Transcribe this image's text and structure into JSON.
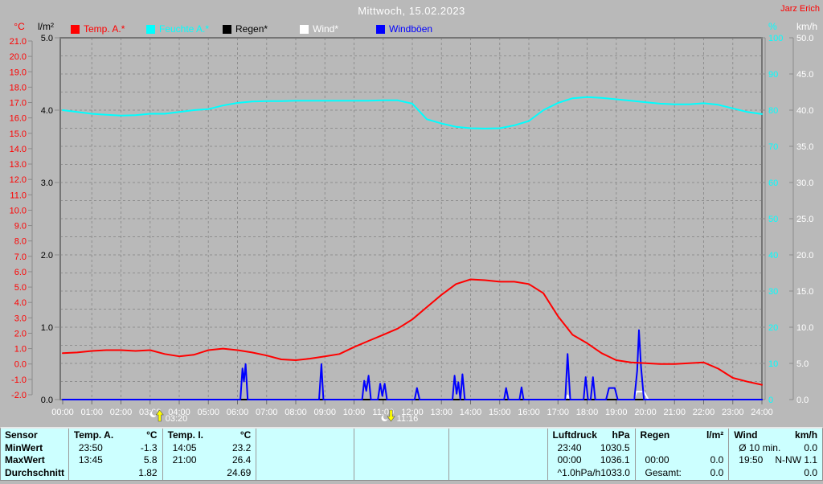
{
  "header": {
    "title": "Mittwoch, 15.02.2023",
    "author": "Jarz Erich"
  },
  "legend": {
    "items": [
      {
        "label": "Temp. A.*",
        "color": "#ff0000"
      },
      {
        "label": "Feuchte A.*",
        "color": "#00ffff"
      },
      {
        "label": "Regen*",
        "color": "#000000"
      },
      {
        "label": "Wind*",
        "color": "#ffffff"
      },
      {
        "label": "Windböen",
        "color": "#0000ff"
      }
    ]
  },
  "chart_data": {
    "type": "line",
    "title": "Mittwoch, 15.02.2023",
    "x_label": "Uhrzeit",
    "x_range_hours": [
      0,
      24
    ],
    "grid": true,
    "x_tick_labels": [
      "00:00",
      "01:00",
      "02:00",
      "03:00",
      "04:00",
      "05:00",
      "06:00",
      "07:00",
      "08:00",
      "09:00",
      "10:00",
      "11:00",
      "12:00",
      "13:00",
      "14:00",
      "15:00",
      "16:00",
      "17:00",
      "18:00",
      "19:00",
      "20:00",
      "21:00",
      "22:00",
      "23:00",
      "24:00"
    ],
    "axes": {
      "temp": {
        "unit": "°C",
        "color": "#ff0000",
        "range": [
          -2,
          21
        ],
        "ticks": [
          "21.0",
          "20.0",
          "19.0",
          "18.0",
          "17.0",
          "16.0",
          "15.0",
          "14.0",
          "13.0",
          "12.0",
          "11.0",
          "10.0",
          "9.0",
          "8.0",
          "7.0",
          "6.0",
          "5.0",
          "4.0",
          "3.0",
          "2.0",
          "1.0",
          "0.0",
          "-1.0",
          "-2.0"
        ]
      },
      "rain": {
        "unit": "l/m²",
        "color": "#000000",
        "range": [
          0,
          5
        ],
        "ticks": [
          "5.0",
          "4.0",
          "3.0",
          "2.0",
          "1.0",
          "0.0"
        ]
      },
      "humidity": {
        "unit": "%",
        "color": "#00ffff",
        "range": [
          0,
          100
        ],
        "ticks": [
          "100",
          "90",
          "80",
          "70",
          "60",
          "50",
          "40",
          "30",
          "20",
          "10",
          "0"
        ]
      },
      "wind": {
        "unit": "km/h",
        "color": "#ffffff",
        "range": [
          0,
          50
        ],
        "ticks": [
          "50.0",
          "45.0",
          "40.0",
          "35.0",
          "30.0",
          "25.0",
          "20.0",
          "15.0",
          "10.0",
          "5.0",
          "0.0"
        ]
      }
    },
    "series": [
      {
        "name": "Feuchte A.*",
        "axis": "humidity",
        "color": "#00ffff",
        "x_start": 0,
        "x_step": 0.5,
        "values": [
          80,
          79.5,
          79,
          78.7,
          78.5,
          78.6,
          79,
          79,
          79.5,
          80,
          80.3,
          81.3,
          82,
          82.4,
          82.5,
          82.5,
          82.6,
          82.6,
          82.6,
          82.6,
          82.6,
          82.6,
          82.7,
          82.7,
          81.8,
          77.5,
          76.3,
          75.4,
          75,
          74.9,
          75,
          75.8,
          77,
          80,
          82,
          83.3,
          83.6,
          83.4,
          83,
          82.6,
          82.2,
          81.8,
          81.6,
          81.6,
          81.9,
          81.5,
          80.5,
          79.5,
          78.9
        ]
      },
      {
        "name": "Wind*",
        "axis": "wind",
        "color": "#ffffff",
        "x": [
          0,
          17.28,
          17.33,
          17.4,
          19.6,
          19.7,
          19.95,
          20.1,
          24
        ],
        "values": [
          0,
          0,
          0.6,
          0,
          0,
          1.1,
          1.1,
          0,
          0
        ]
      },
      {
        "name": "Regen*",
        "axis": "rain",
        "color": "#000000",
        "x": [
          0,
          24
        ],
        "values": [
          0,
          0
        ]
      },
      {
        "name": "Windböen",
        "axis": "wind",
        "color": "#0000ff",
        "x": [
          0,
          6.1,
          6.17,
          6.22,
          6.28,
          6.35,
          8.8,
          8.88,
          8.95,
          10.28,
          10.35,
          10.42,
          10.5,
          10.58,
          10.82,
          10.9,
          10.97,
          11.05,
          11.13,
          12.08,
          12.16,
          12.25,
          13.38,
          13.45,
          13.52,
          13.58,
          13.65,
          13.72,
          13.8,
          15.15,
          15.22,
          15.3,
          15.68,
          15.75,
          15.82,
          17.25,
          17.33,
          17.42,
          17.88,
          17.95,
          18.03,
          18.12,
          18.2,
          18.28,
          18.65,
          18.75,
          18.95,
          19.05,
          19.62,
          19.72,
          19.78,
          19.85,
          19.95,
          24
        ],
        "values": [
          0,
          0,
          4.3,
          2.5,
          4.9,
          0,
          0,
          4.9,
          0,
          0,
          2.6,
          1.2,
          3.3,
          0,
          0,
          2.2,
          0.5,
          2.2,
          0,
          0,
          1.6,
          0,
          0,
          3.3,
          0.8,
          2.4,
          0,
          3.5,
          0,
          0,
          1.6,
          0,
          0,
          1.7,
          0,
          0,
          6.3,
          0,
          0,
          3.1,
          0,
          0,
          3.1,
          0,
          0,
          1.6,
          1.6,
          0,
          0,
          4.0,
          9.6,
          4.5,
          0,
          0
        ]
      },
      {
        "name": "Temp. A.*",
        "axis": "temp",
        "color": "#ff0000",
        "x_start": 0,
        "x_step": 0.5,
        "values": [
          0.7,
          0.75,
          0.85,
          0.9,
          0.9,
          0.85,
          0.9,
          0.65,
          0.5,
          0.6,
          0.9,
          1.0,
          0.9,
          0.75,
          0.55,
          0.3,
          0.25,
          0.35,
          0.5,
          0.65,
          1.1,
          1.5,
          1.9,
          2.3,
          2.9,
          3.7,
          4.5,
          5.2,
          5.5,
          5.45,
          5.35,
          5.35,
          5.2,
          4.6,
          3.1,
          1.9,
          1.35,
          0.7,
          0.25,
          0.1,
          0.05,
          0.0,
          0.0,
          0.05,
          0.1,
          -0.3,
          -0.9,
          -1.15,
          -1.35
        ]
      }
    ],
    "markers": [
      {
        "label": "03:20",
        "hours": 3.33,
        "type": "moonrise"
      },
      {
        "label": "11:16",
        "hours": 11.27,
        "type": "moonset"
      }
    ]
  },
  "table": {
    "row_labels": [
      "Sensor",
      "MinWert",
      "MaxWert",
      "Durchschnitt"
    ],
    "columns": [
      {
        "name": "Temp. A.",
        "unit": "°C",
        "rows": [
          [
            "23:50",
            "-1.3"
          ],
          [
            "13:45",
            "5.8"
          ],
          [
            "",
            "1.82"
          ]
        ]
      },
      {
        "name": "Temp. I.",
        "unit": "°C",
        "rows": [
          [
            "14:05",
            "23.2"
          ],
          [
            "21:00",
            "26.4"
          ],
          [
            "",
            "24.69"
          ]
        ]
      },
      {
        "name": "",
        "unit": "",
        "rows": [
          [
            "",
            ""
          ],
          [
            "",
            ""
          ],
          [
            "",
            ""
          ]
        ]
      },
      {
        "name": "",
        "unit": "",
        "rows": [
          [
            "",
            ""
          ],
          [
            "",
            ""
          ],
          [
            "",
            ""
          ]
        ]
      },
      {
        "name": "",
        "unit": "",
        "rows": [
          [
            "",
            ""
          ],
          [
            "",
            ""
          ],
          [
            "",
            ""
          ]
        ]
      },
      {
        "name": "Luftdruck",
        "unit": "hPa",
        "rows": [
          [
            "23:40",
            "1030.5"
          ],
          [
            "00:00",
            "1036.1"
          ],
          [
            "^1.0hPa/h",
            "1033.0"
          ]
        ]
      },
      {
        "name": "Regen",
        "unit": "l/m²",
        "rows": [
          [
            "",
            ""
          ],
          [
            "00:00",
            "0.0"
          ],
          [
            "Gesamt:",
            "0.0"
          ]
        ]
      },
      {
        "name": "Wind",
        "unit": "km/h",
        "rows": [
          [
            "Ø 10 min.",
            "0.0"
          ],
          [
            "19:50",
            "N-NW 1.1"
          ],
          [
            "",
            "0.0"
          ]
        ]
      }
    ]
  }
}
